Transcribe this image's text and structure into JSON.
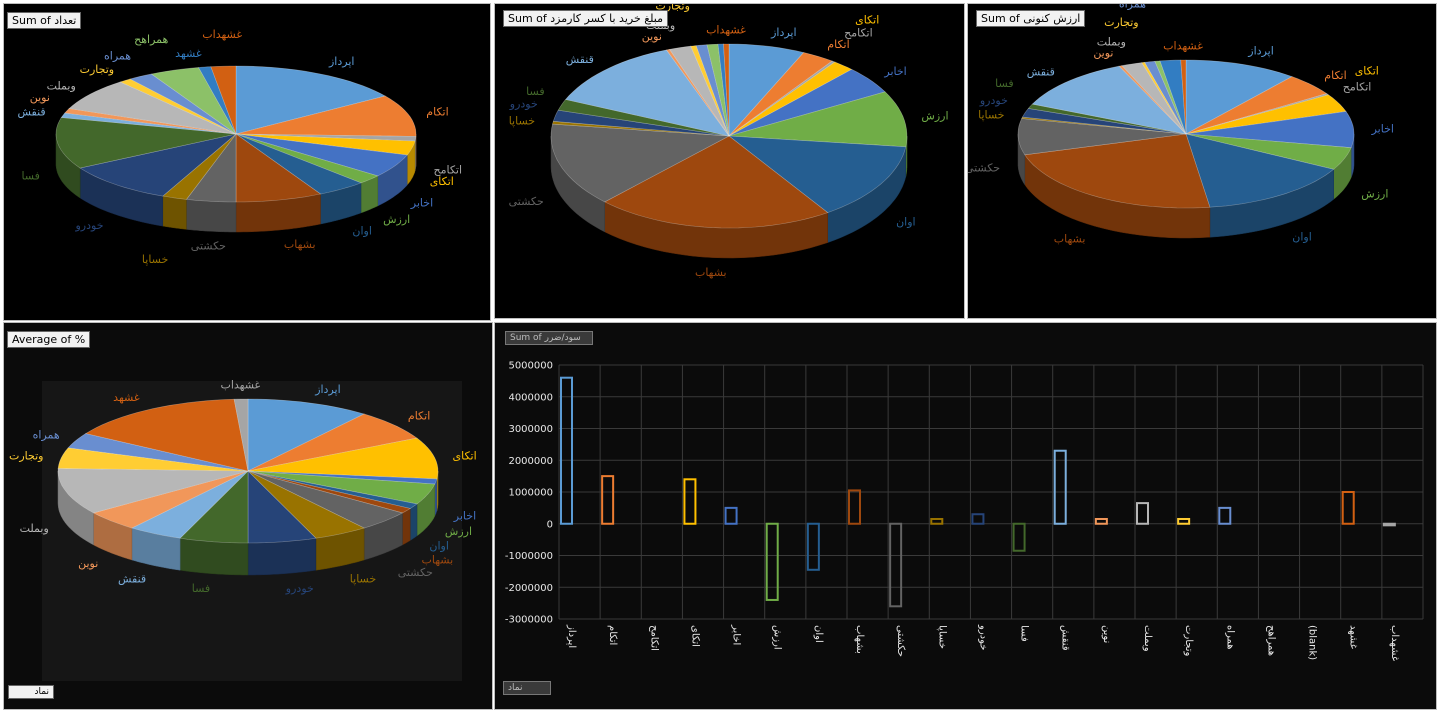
{
  "panels": {
    "p1": {
      "title": "Sum of تعداد"
    },
    "p2": {
      "title": "Sum of مبلغ خرید با کسر کارمزد"
    },
    "p3": {
      "title": "Sum of ارزش کنونی"
    },
    "p4": {
      "title": "Average of %",
      "field_button": "نماد"
    },
    "p5": {
      "title": "Sum of سود/ضرر",
      "field_button": "نماد"
    }
  },
  "chart_data": [
    {
      "type": "pie",
      "title": "Sum of تعداد",
      "labels": [
        "اپرداز",
        "اتکام",
        "اتکامح",
        "اتکای",
        "اخابر",
        "ارزش",
        "اوان",
        "بشهاب",
        "حکشتی",
        "خساپا",
        "خودرو",
        "فسا",
        "قنقش",
        "نوین",
        "وبملت",
        "وتجارت",
        "همراه",
        "همراهح",
        "غشهد",
        "غشهداب"
      ],
      "values": [
        14,
        9,
        1,
        3,
        5,
        2,
        4,
        7,
        4,
        2,
        9,
        11,
        1,
        1,
        7,
        1,
        2,
        4,
        1,
        2
      ],
      "colors": [
        "#5b9bd5",
        "#ed7d31",
        "#a5a5a5",
        "#ffc000",
        "#4472c4",
        "#70ad47",
        "#255e91",
        "#9e480e",
        "#636363",
        "#997300",
        "#264478",
        "#43682b",
        "#7cafdd",
        "#f1975a",
        "#b7b7b7",
        "#ffcd33",
        "#698ed0",
        "#8cc168",
        "#327dc2",
        "#d26012"
      ]
    },
    {
      "type": "pie",
      "title": "Sum of مبلغ خرید با کسر کارمزد",
      "labels": [
        "اپرداز",
        "اتکام",
        "اتکامح",
        "اتکای",
        "اخابر",
        "ارزش",
        "اوان",
        "بشهاب",
        "حکشتی",
        "خساپا",
        "خودرو",
        "فسا",
        "قنقش",
        "نوین",
        "وبملت",
        "وتجارت",
        "همراه",
        "همراهح",
        "غشهد",
        "غشهداب"
      ],
      "values": [
        7,
        3,
        0.3,
        2,
        5,
        10,
        14,
        22,
        15,
        0.5,
        2,
        2,
        13,
        0.3,
        2,
        0.5,
        1,
        1,
        0.5,
        0.5
      ],
      "colors": [
        "#5b9bd5",
        "#ed7d31",
        "#a5a5a5",
        "#ffc000",
        "#4472c4",
        "#70ad47",
        "#255e91",
        "#9e480e",
        "#636363",
        "#997300",
        "#264478",
        "#43682b",
        "#7cafdd",
        "#f1975a",
        "#b7b7b7",
        "#ffcd33",
        "#698ed0",
        "#8cc168",
        "#327dc2",
        "#d26012"
      ]
    },
    {
      "type": "pie",
      "title": "Sum of ارزش کنونی",
      "labels": [
        "اپرداز",
        "اتکام",
        "اتکامح",
        "اتکای",
        "اخابر",
        "ارزش",
        "اوان",
        "بشهاب",
        "حکشتی",
        "خساپا",
        "خودرو",
        "فسا",
        "قنقش",
        "نوین",
        "وبملت",
        "وتجارت",
        "همراه",
        "همراهح",
        "غشهد",
        "غشهداب"
      ],
      "values": [
        11,
        5,
        0.3,
        4,
        8,
        5,
        15,
        23,
        8,
        0.3,
        2,
        1,
        12,
        0.3,
        2,
        0.3,
        1,
        0.5,
        2,
        0.5
      ],
      "colors": [
        "#5b9bd5",
        "#ed7d31",
        "#a5a5a5",
        "#ffc000",
        "#4472c4",
        "#70ad47",
        "#255e91",
        "#9e480e",
        "#636363",
        "#997300",
        "#264478",
        "#43682b",
        "#7cafdd",
        "#f1975a",
        "#b7b7b7",
        "#ffcd33",
        "#698ed0",
        "#8cc168",
        "#327dc2",
        "#d26012"
      ]
    },
    {
      "type": "pie",
      "title": "Average of %",
      "labels": [
        "اپرداز",
        "اتکام",
        "اتکای",
        "اخابر",
        "ارزش",
        "اوان",
        "بشهاب",
        "حکشتی",
        "خساپا",
        "خودرو",
        "فسا",
        "قنقش",
        "نوین",
        "وبملت",
        "وتجارت",
        "همراه",
        "غشهد",
        "غشهداب"
      ],
      "values": [
        9,
        6,
        8,
        1,
        4,
        1,
        1,
        4,
        4,
        5,
        5,
        4,
        4,
        9,
        4,
        3,
        13,
        1
      ],
      "colors": [
        "#5b9bd5",
        "#ed7d31",
        "#ffc000",
        "#4472c4",
        "#70ad47",
        "#255e91",
        "#9e480e",
        "#636363",
        "#997300",
        "#264478",
        "#43682b",
        "#7cafdd",
        "#f1975a",
        "#b7b7b7",
        "#ffcd33",
        "#698ed0",
        "#d26012",
        "#a5a5a5"
      ]
    },
    {
      "type": "bar",
      "title": "Sum of سود/ضرر",
      "categories": [
        "اپرداز",
        "اتکام",
        "اتکامح",
        "اتکای",
        "اخابر",
        "ارزش",
        "اوان",
        "بشهاب",
        "حکشتی",
        "خساپا",
        "خودرو",
        "فسا",
        "قنقش",
        "نوین",
        "وبملت",
        "وتجارت",
        "همراه",
        "همراهح",
        "(blank)",
        "غشهد",
        "غشهداب"
      ],
      "values": [
        4600000,
        1500000,
        0,
        1400000,
        500000,
        -2400000,
        -1450000,
        1050000,
        -2600000,
        150000,
        300000,
        -850000,
        2300000,
        150000,
        650000,
        150000,
        500000,
        0,
        0,
        1000000,
        -50000
      ],
      "colors": [
        "#5b9bd5",
        "#ed7d31",
        "#a5a5a5",
        "#ffc000",
        "#4472c4",
        "#70ad47",
        "#255e91",
        "#9e480e",
        "#636363",
        "#997300",
        "#264478",
        "#43682b",
        "#7cafdd",
        "#f1975a",
        "#b7b7b7",
        "#ffcd33",
        "#698ed0",
        "#8cc168",
        "#327dc2",
        "#d26012",
        "#a5a5a5"
      ],
      "ylim": [
        -3000000,
        5000000
      ],
      "yticks": [
        "5000000",
        "4000000",
        "3000000",
        "2000000",
        "1000000",
        "0",
        "-1000000",
        "-2000000",
        "-3000000"
      ],
      "grid": true
    }
  ]
}
